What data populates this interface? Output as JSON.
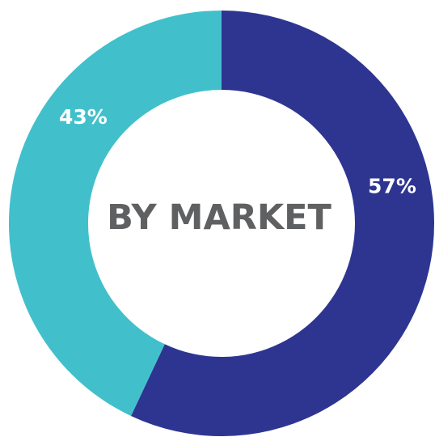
{
  "chart_data": {
    "type": "pie",
    "title": "BY MARKET",
    "donut": true,
    "slices": [
      {
        "label": "57%",
        "value": 57,
        "color": "#2e3591"
      },
      {
        "label": "43%",
        "value": 43,
        "color": "#41c0cc"
      }
    ]
  }
}
